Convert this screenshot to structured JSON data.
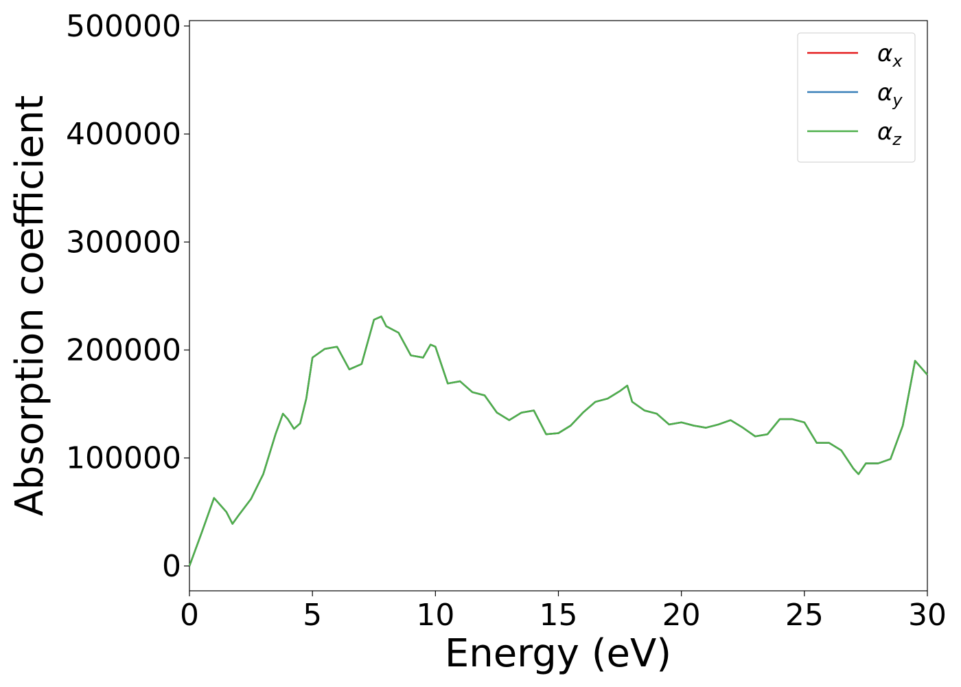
{
  "chart_data": {
    "type": "line",
    "xlabel": "Energy (eV)",
    "ylabel": "Absorption coefficient",
    "x": [
      0,
      0.5,
      1.0,
      1.5,
      1.75,
      2.0,
      2.5,
      3.0,
      3.5,
      3.8,
      4.0,
      4.25,
      4.5,
      4.75,
      5.0,
      5.5,
      6.0,
      6.5,
      7.0,
      7.5,
      7.8,
      8.0,
      8.5,
      9.0,
      9.5,
      9.8,
      10.0,
      10.5,
      11.0,
      11.5,
      12.0,
      12.5,
      13.0,
      13.5,
      14.0,
      14.5,
      15.0,
      15.5,
      16.0,
      16.5,
      17.0,
      17.5,
      17.8,
      18.0,
      18.5,
      19.0,
      19.5,
      20.0,
      20.5,
      21.0,
      21.5,
      22.0,
      22.5,
      23.0,
      23.5,
      24.0,
      24.5,
      25.0,
      25.5,
      26.0,
      26.5,
      27.0,
      27.2,
      27.5,
      28.0,
      28.5,
      29.0,
      29.5,
      30.0
    ],
    "series": [
      {
        "name": "αx",
        "color": "#e41a1c",
        "values": [
          0,
          31000,
          63000,
          50000,
          39000,
          47000,
          62000,
          85000,
          122000,
          141000,
          136000,
          127000,
          132000,
          155000,
          193000,
          201000,
          203000,
          182000,
          187000,
          228000,
          231000,
          222000,
          216000,
          195000,
          193000,
          205000,
          203000,
          169000,
          171000,
          161000,
          158000,
          142000,
          135000,
          142000,
          144000,
          122000,
          123000,
          130000,
          142000,
          152000,
          155000,
          162000,
          167000,
          152000,
          144000,
          141000,
          131000,
          133000,
          130000,
          128000,
          131000,
          135000,
          128000,
          120000,
          122000,
          136000,
          136000,
          133000,
          114000,
          114000,
          107000,
          90000,
          85000,
          95000,
          95000,
          99000,
          130000,
          190000,
          177000
        ]
      },
      {
        "name": "αy",
        "color": "#377eb8",
        "values": [
          0,
          31000,
          63000,
          50000,
          39000,
          47000,
          62000,
          85000,
          122000,
          141000,
          136000,
          127000,
          132000,
          155000,
          193000,
          201000,
          203000,
          182000,
          187000,
          228000,
          231000,
          222000,
          216000,
          195000,
          193000,
          205000,
          203000,
          169000,
          171000,
          161000,
          158000,
          142000,
          135000,
          142000,
          144000,
          122000,
          123000,
          130000,
          142000,
          152000,
          155000,
          162000,
          167000,
          152000,
          144000,
          141000,
          131000,
          133000,
          130000,
          128000,
          131000,
          135000,
          128000,
          120000,
          122000,
          136000,
          136000,
          133000,
          114000,
          114000,
          107000,
          90000,
          85000,
          95000,
          95000,
          99000,
          130000,
          190000,
          177000
        ]
      },
      {
        "name": "αz",
        "color": "#4daf4a",
        "values": [
          0,
          31000,
          63000,
          50000,
          39000,
          47000,
          62000,
          85000,
          122000,
          141000,
          136000,
          127000,
          132000,
          155000,
          193000,
          201000,
          203000,
          182000,
          187000,
          228000,
          231000,
          222000,
          216000,
          195000,
          193000,
          205000,
          203000,
          169000,
          171000,
          161000,
          158000,
          142000,
          135000,
          142000,
          144000,
          122000,
          123000,
          130000,
          142000,
          152000,
          155000,
          162000,
          167000,
          152000,
          144000,
          141000,
          131000,
          133000,
          130000,
          128000,
          131000,
          135000,
          128000,
          120000,
          122000,
          136000,
          136000,
          133000,
          114000,
          114000,
          107000,
          90000,
          85000,
          95000,
          95000,
          99000,
          130000,
          190000,
          177000
        ]
      }
    ],
    "xlim": [
      0,
      30
    ],
    "xticks": [
      0,
      5,
      10,
      15,
      20,
      25,
      30
    ],
    "ylim": [
      -23000,
      505000
    ],
    "yticks": [
      0,
      100000,
      200000,
      300000,
      400000,
      500000
    ],
    "legend": "upper right"
  }
}
